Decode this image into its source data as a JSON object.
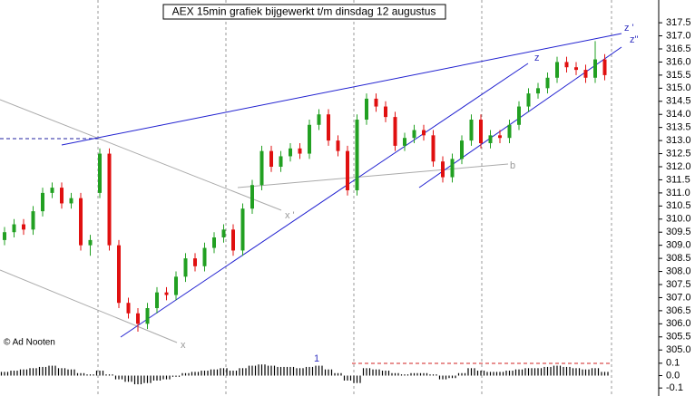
{
  "chart_data": {
    "type": "candlestick",
    "title": "AEX 15min grafiek bijgewerkt t/m dinsdag 12 augustus",
    "credit": "© Ad Nooten",
    "open": [
      309.2,
      309.5,
      309.8,
      309.6,
      310.3,
      311.0,
      311.2,
      310.6,
      310.8,
      309.0,
      311.0,
      312.5,
      309.0,
      306.8,
      306.4,
      306.0,
      306.6,
      307.2,
      307.1,
      307.8,
      308.5,
      308.2,
      308.9,
      309.3,
      309.6,
      308.8,
      310.4,
      311.3,
      312.6,
      312.0,
      312.4,
      312.7,
      312.5,
      313.6,
      314.0,
      313.0,
      312.6,
      311.1,
      313.8,
      314.6,
      314.3,
      313.9,
      312.8,
      313.1,
      313.4,
      313.2,
      312.2,
      311.6,
      312.3,
      313.0,
      313.8,
      312.9,
      313.2,
      313.1,
      313.6,
      314.3,
      314.8,
      315.0,
      315.4,
      316.0,
      315.8,
      315.7,
      315.4,
      316.1
    ],
    "close": [
      309.5,
      309.8,
      309.6,
      310.3,
      311.0,
      311.2,
      310.6,
      310.8,
      309.0,
      309.2,
      312.5,
      309.0,
      306.8,
      306.4,
      306.0,
      306.6,
      307.2,
      307.1,
      307.8,
      308.5,
      308.2,
      308.9,
      309.3,
      309.6,
      308.8,
      310.4,
      311.3,
      312.6,
      312.0,
      312.4,
      312.7,
      312.5,
      313.6,
      314.0,
      313.0,
      312.6,
      311.1,
      313.8,
      314.6,
      314.3,
      313.9,
      312.8,
      313.1,
      313.4,
      313.2,
      312.2,
      311.6,
      312.3,
      313.0,
      313.8,
      312.9,
      313.2,
      313.1,
      313.6,
      314.3,
      314.8,
      315.0,
      315.4,
      316.0,
      315.8,
      315.7,
      315.4,
      316.1,
      315.5
    ],
    "high": [
      309.7,
      310.0,
      310.0,
      310.5,
      311.2,
      311.4,
      311.4,
      311.0,
      311.0,
      309.4,
      312.7,
      312.7,
      309.2,
      307.0,
      306.6,
      306.8,
      307.4,
      307.4,
      308.0,
      308.7,
      308.7,
      309.1,
      309.5,
      309.8,
      309.8,
      310.6,
      311.5,
      312.8,
      312.8,
      312.6,
      312.9,
      312.9,
      313.8,
      314.2,
      314.2,
      313.2,
      312.8,
      314.0,
      314.8,
      314.8,
      314.5,
      314.1,
      313.3,
      313.6,
      313.6,
      313.4,
      312.4,
      312.5,
      313.2,
      314.0,
      314.0,
      313.4,
      313.4,
      313.8,
      314.5,
      315.0,
      315.2,
      315.6,
      316.2,
      316.2,
      316.0,
      315.9,
      316.8,
      316.3
    ],
    "low": [
      309.0,
      309.3,
      309.4,
      309.4,
      310.1,
      310.8,
      310.4,
      310.4,
      308.8,
      308.6,
      310.8,
      308.8,
      306.6,
      306.2,
      305.7,
      305.8,
      306.4,
      306.9,
      306.9,
      307.6,
      308.0,
      308.0,
      308.7,
      309.1,
      308.6,
      308.6,
      310.2,
      311.1,
      311.8,
      311.8,
      312.2,
      312.3,
      312.3,
      313.4,
      312.8,
      312.4,
      310.9,
      310.9,
      313.6,
      314.1,
      313.7,
      312.6,
      312.6,
      312.9,
      313.0,
      312.0,
      311.4,
      311.4,
      312.1,
      312.8,
      312.7,
      312.7,
      312.9,
      312.9,
      313.4,
      314.1,
      314.6,
      314.8,
      315.2,
      315.6,
      315.5,
      315.2,
      315.2,
      315.3
    ],
    "ylim": [
      304.8,
      318.3
    ],
    "yticks": [
      {
        "value": 305,
        "label": "305.0"
      },
      305.5,
      {
        "value": 306,
        "label": "306.0"
      },
      306.5,
      {
        "value": 307,
        "label": "307.0"
      },
      307.5,
      {
        "value": 308,
        "label": "308.0"
      },
      308.5,
      {
        "value": 309,
        "label": "309.0"
      },
      309.5,
      {
        "value": 310,
        "label": "310.0"
      },
      310.5,
      {
        "value": 311,
        "label": "311.0"
      },
      311.5,
      {
        "value": 312,
        "label": "312.0"
      },
      312.5,
      {
        "value": 313,
        "label": "313.0"
      },
      313.5,
      {
        "value": 314,
        "label": "314.0"
      },
      314.5,
      {
        "value": 315,
        "label": "315.0"
      },
      315.5,
      {
        "value": 316,
        "label": "316.0"
      },
      316.5,
      {
        "value": 317,
        "label": "317.0"
      },
      317.5
    ],
    "annotations": [
      "z '",
      "z\"",
      "z",
      "x '",
      "x",
      "b",
      "1"
    ],
    "indicator": {
      "values": [
        0.03,
        0.04,
        0.05,
        0.06,
        0.07,
        0.08,
        0.06,
        0.05,
        0.02,
        0.01,
        0.04,
        0.01,
        -0.03,
        -0.05,
        -0.07,
        -0.06,
        -0.04,
        -0.03,
        -0.01,
        0.02,
        0.03,
        0.04,
        0.05,
        0.06,
        0.04,
        0.06,
        0.08,
        0.09,
        0.08,
        0.07,
        0.07,
        0.06,
        0.07,
        0.08,
        0.05,
        0.02,
        -0.04,
        -0.06,
        0.06,
        0.05,
        0.04,
        0.02,
        0.01,
        0.02,
        0.02,
        0.01,
        -0.03,
        -0.02,
        0.02,
        0.06,
        0.04,
        0.03,
        0.03,
        0.04,
        0.05,
        0.06,
        0.06,
        0.07,
        0.08,
        0.07,
        0.06,
        0.05,
        0.06,
        0.03
      ],
      "ylim": [
        -0.15,
        0.15
      ],
      "yticks": [
        {
          "value": 0.1,
          "label": "0.1"
        },
        {
          "value": 0,
          "label": "0.0"
        },
        {
          "value": -0.1,
          "label": "-0.1"
        }
      ]
    }
  }
}
